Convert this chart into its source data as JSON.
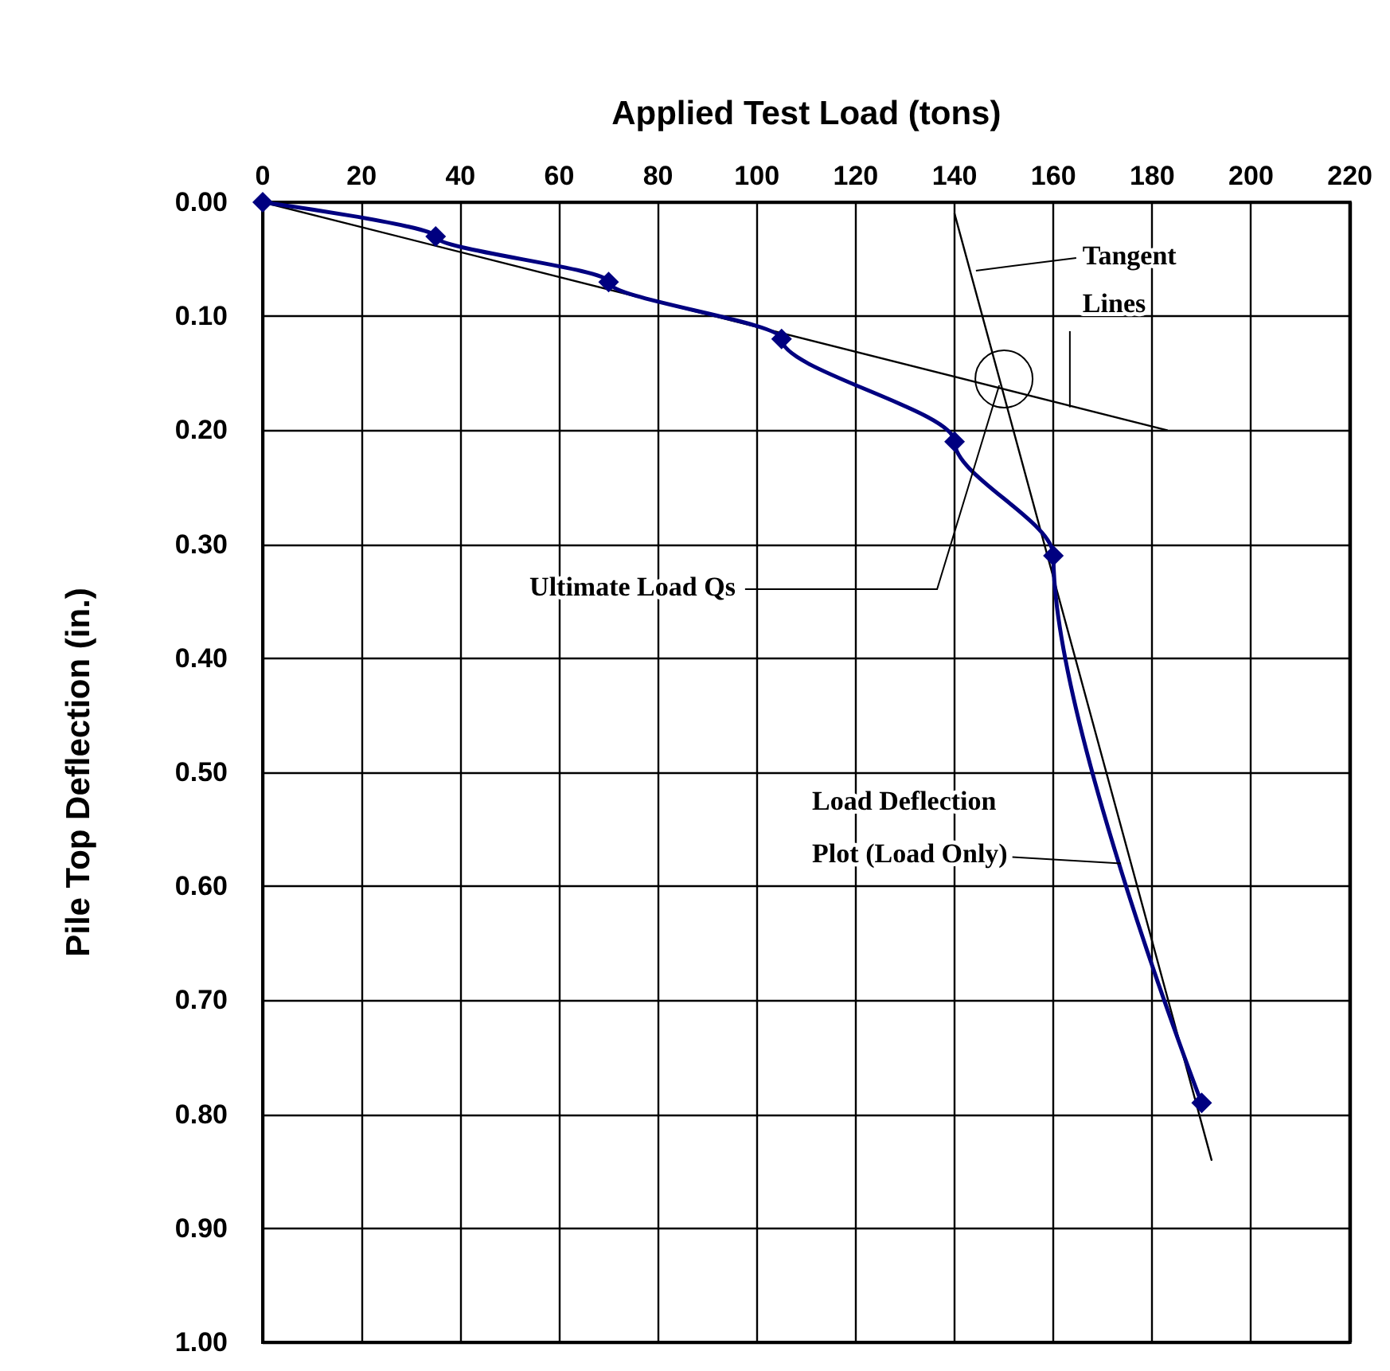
{
  "chart_data": {
    "type": "line",
    "xlabel": "Applied Test Load (tons)",
    "ylabel": "Pile Top Deflection (in.)",
    "x": [
      0,
      35,
      70,
      105,
      140,
      160,
      190
    ],
    "series": [
      {
        "color": "#000080",
        "values": [
          0,
          0.03,
          0.07,
          0.12,
          0.21,
          0.31,
          0.79
        ],
        "marker": "diamond"
      },
      {
        "type": "line",
        "color": "#000000",
        "x": [
          0,
          183
        ],
        "values": [
          0,
          0.2
        ],
        "marker": "none"
      },
      {
        "type": "line",
        "color": "#000000",
        "x": [
          140,
          192
        ],
        "values": [
          0.01,
          0.84
        ],
        "marker": "none"
      }
    ],
    "xlim": [
      0,
      220
    ],
    "xticks": [
      0,
      20,
      40,
      60,
      80,
      100,
      120,
      140,
      160,
      180,
      200,
      220
    ],
    "ylim": [
      1,
      0
    ],
    "yticks": [
      {
        "value": 0,
        "label": "0.00"
      },
      {
        "value": 0.1,
        "label": "0.10"
      },
      {
        "value": 0.2,
        "label": "0.20"
      },
      {
        "value": 0.3,
        "label": "0.30"
      },
      {
        "value": 0.4,
        "label": "0.40"
      },
      {
        "value": 0.5,
        "label": "0.50"
      },
      {
        "value": 0.6,
        "label": "0.60"
      },
      {
        "value": 0.7,
        "label": "0.70"
      },
      {
        "value": 0.8,
        "label": "0.80"
      },
      {
        "value": 0.9,
        "label": "0.90"
      },
      {
        "value": 1,
        "label": "1.00"
      }
    ],
    "annotations": [
      {
        "text": "Ultimate Load Qs",
        "x": 150,
        "y": 0.155
      },
      {
        "text": "Tangent Lines",
        "x": 144,
        "y": 0.06
      },
      {
        "text": "Load Deflection Plot (Load Only)",
        "x": 174,
        "y": 0.58
      }
    ],
    "grid": true,
    "line_style": "solid"
  }
}
